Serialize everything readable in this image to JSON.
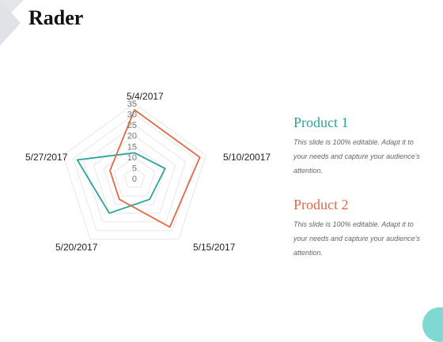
{
  "title": "Rader",
  "colors": {
    "product1": "#29a59b",
    "product2": "#e06a41",
    "grid": "#e6e6e6"
  },
  "legend": [
    {
      "name": "Product 1",
      "description": "This slide is 100% editable. Adapt it to your needs and capture your audience's attention.",
      "color": "#29a59b"
    },
    {
      "name": "Product 2",
      "description": "This slide is 100% editable. Adapt it to your needs and capture your audience's attention.",
      "color": "#e06a41"
    }
  ],
  "chart_data": {
    "type": "radar",
    "categories": [
      "5/4/2017",
      "5/10/20017",
      "5/15/2017",
      "5/20/2017",
      "5/27/2017"
    ],
    "ticks": [
      0,
      5,
      10,
      15,
      20,
      25,
      30,
      35
    ],
    "range": [
      0,
      35
    ],
    "grid": true,
    "legend_position": "right",
    "series": [
      {
        "name": "Product 1",
        "values": [
          12,
          15,
          12,
          20,
          28
        ],
        "color": "#29a59b"
      },
      {
        "name": "Product 2",
        "values": [
          32,
          32,
          28,
          12,
          12
        ],
        "color": "#e06a41"
      }
    ]
  }
}
